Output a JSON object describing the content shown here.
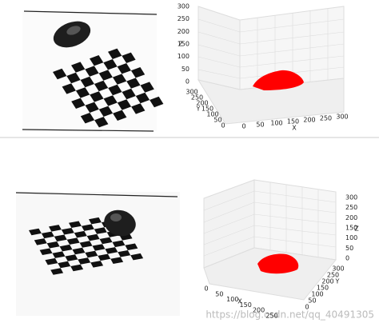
{
  "panels": [
    {
      "z_label": "Z",
      "y_label": "Y",
      "x_label": "X",
      "z_ticks": [
        0,
        50,
        100,
        150,
        200,
        250,
        300
      ],
      "y_ticks": [
        300,
        250,
        200,
        150,
        100,
        50,
        0
      ],
      "x_ticks": [
        0,
        50,
        100,
        150,
        200,
        250,
        300
      ]
    },
    {
      "z_label": "Z",
      "y_label": "Y",
      "x_label": "X",
      "z_ticks": [
        0,
        50,
        100,
        150,
        200,
        250,
        300
      ],
      "y_ticks": [
        0,
        50,
        100,
        150,
        200,
        250,
        300
      ],
      "x_ticks": [
        0,
        50,
        100,
        150,
        200,
        250
      ]
    }
  ],
  "watermark": "https://blog.csdn.net/qq_40491305"
}
